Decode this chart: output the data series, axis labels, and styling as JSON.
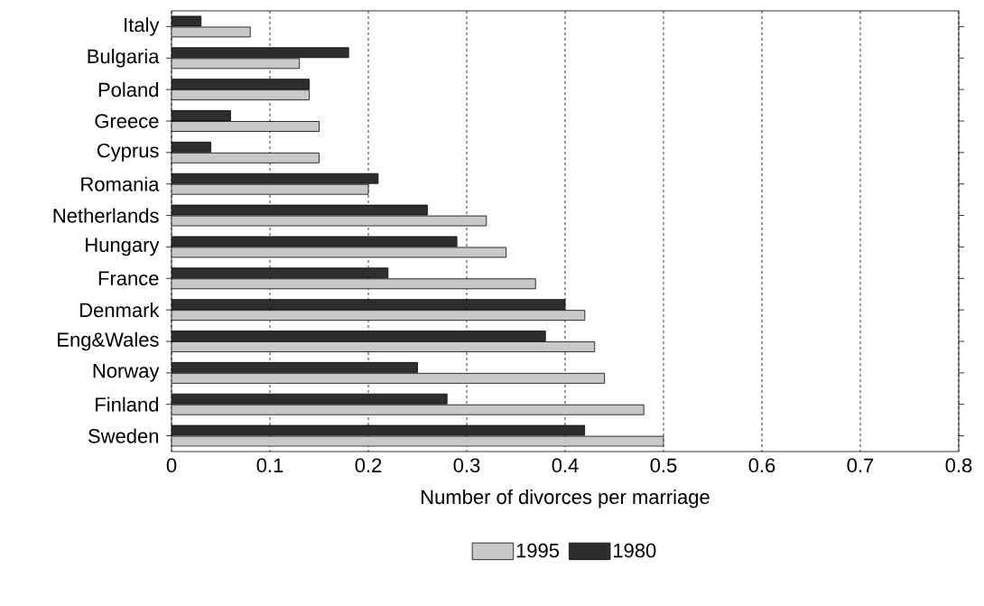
{
  "chart_data": {
    "type": "bar",
    "orientation": "horizontal",
    "xlabel": "Number of divorces per marriage",
    "categories": [
      "Italy",
      "Bulgaria",
      "Poland",
      "Greece",
      "Cyprus",
      "Romania",
      "Netherlands",
      "Hungary",
      "France",
      "Denmark",
      "Eng&Wales",
      "Norway",
      "Finland",
      "Sweden"
    ],
    "series": [
      {
        "name": "1995",
        "color": "#c8c8c8",
        "values": [
          0.08,
          0.13,
          0.14,
          0.15,
          0.15,
          0.2,
          0.32,
          0.34,
          0.37,
          0.42,
          0.43,
          0.44,
          0.48,
          0.5
        ]
      },
      {
        "name": "1980",
        "color": "#2e2e2e",
        "values": [
          0.03,
          0.18,
          0.14,
          0.06,
          0.04,
          0.21,
          0.26,
          0.29,
          0.22,
          0.4,
          0.38,
          0.25,
          0.28,
          0.42
        ]
      }
    ],
    "xlim": [
      0,
      0.8
    ],
    "xticks": [
      0,
      0.1,
      0.2,
      0.3,
      0.4,
      0.5,
      0.6,
      0.7,
      0.8
    ],
    "grid": "x",
    "legend": "bottom"
  }
}
